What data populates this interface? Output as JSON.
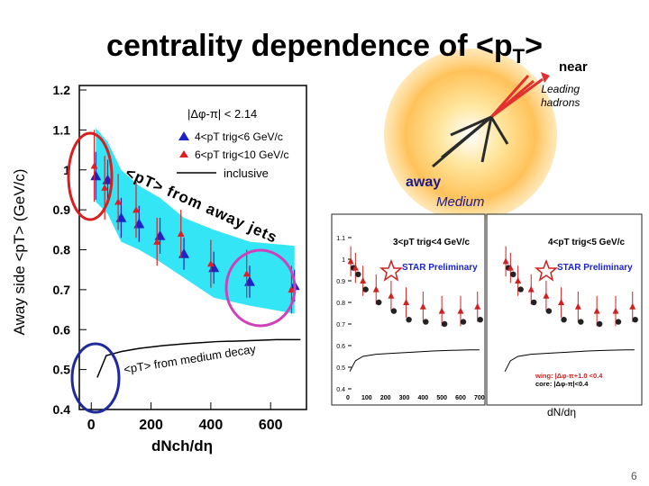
{
  "title": "centrality dependence of <p",
  "title_sub": "T",
  "title_end": ">",
  "annotations": {
    "near": "near",
    "leading_line1": "Leading",
    "leading_line2": "hadrons",
    "away": "away",
    "medium": "Medium",
    "away_jets": "<pT> from away jets",
    "medium_decay": "<pT> from medium decay",
    "page_number": "6"
  },
  "colors": {
    "band": "#33e5f5",
    "blue": "#1c24c8",
    "red": "#e02020",
    "circle_red": "#d81e1e",
    "circle_blue": "#1f2a9e",
    "circle_magenta": "#d040b8"
  },
  "chart_data": [
    {
      "type": "scatter",
      "title": "",
      "ylabel": "Away side <pT> (GeV/c)",
      "xlabel": "dNch/dη",
      "xlim": [
        -40,
        720
      ],
      "ylim": [
        0.4,
        1.2
      ],
      "x_ticks": [
        "0",
        "200",
        "400",
        "600"
      ],
      "x_tick_values": [
        0,
        200,
        400,
        600
      ],
      "y_ticks": [
        "1.2",
        "1.1",
        "1",
        "0.9",
        "0.8",
        "0.7",
        "0.6",
        "0.5",
        "0.4"
      ],
      "y_tick_values": [
        1.2,
        1.1,
        1.0,
        0.9,
        0.8,
        0.7,
        0.6,
        0.5,
        0.4
      ],
      "legend": {
        "cut": "|Δφ-π| < 2.14",
        "entries": [
          "4<pT trig<6 GeV/c",
          "6<pT trig<10 GeV/c",
          "inclusive"
        ],
        "placement": "top-right"
      },
      "series": [
        {
          "name": "4<pT trig<6 GeV/c",
          "marker": "triangle",
          "color": "#1c24c8",
          "x": [
            15,
            55,
            100,
            160,
            230,
            310,
            410,
            530,
            680
          ],
          "y": [
            0.985,
            0.975,
            0.88,
            0.865,
            0.835,
            0.79,
            0.755,
            0.72,
            0.71
          ],
          "err": [
            0.06,
            0.05,
            0.05,
            0.045,
            0.045,
            0.04,
            0.04,
            0.04,
            0.04
          ]
        },
        {
          "name": "6<pT trig<10 GeV/c",
          "marker": "triangle",
          "color": "#e02020",
          "x": [
            10,
            45,
            90,
            150,
            220,
            300,
            400,
            520,
            670
          ],
          "y": [
            1.01,
            0.955,
            0.92,
            0.9,
            0.82,
            0.84,
            0.765,
            0.74,
            0.7
          ],
          "err": [
            0.09,
            0.08,
            0.07,
            0.07,
            0.06,
            0.06,
            0.06,
            0.06,
            0.06
          ]
        }
      ],
      "band": {
        "name": "systematic band",
        "x": [
          15,
          55,
          100,
          160,
          230,
          310,
          410,
          530,
          680
        ],
        "upper": [
          1.105,
          1.07,
          1.0,
          0.96,
          0.93,
          0.88,
          0.85,
          0.82,
          0.81
        ],
        "lower": [
          0.92,
          0.89,
          0.82,
          0.8,
          0.77,
          0.73,
          0.68,
          0.66,
          0.64
        ]
      },
      "inclusive_curve": {
        "name": "inclusive",
        "x": [
          20,
          50,
          100,
          160,
          240,
          320,
          420,
          520,
          620,
          700
        ],
        "y": [
          0.48,
          0.535,
          0.545,
          0.553,
          0.56,
          0.565,
          0.57,
          0.572,
          0.575,
          0.575
        ]
      }
    },
    {
      "type": "scatter",
      "title": "3<pT trig<4 GeV/c",
      "xlabel": "",
      "x_ticks": [
        "0",
        "100",
        "200",
        "300",
        "400",
        "500",
        "600",
        "700"
      ],
      "y_ticks": [
        "1.1",
        "1",
        "0.9",
        "0.8",
        "0.7",
        "0.6",
        "0.5",
        "0.4"
      ],
      "xlim": [
        0,
        720
      ],
      "ylim": [
        0.4,
        1.15
      ],
      "label": "STAR Preliminary"
    },
    {
      "type": "scatter",
      "title": "4<pT trig<5 GeV/c",
      "xlabel": "dN/dη",
      "xlim": [
        0,
        720
      ],
      "ylim": [
        0.4,
        1.15
      ],
      "label": "STAR Preliminary",
      "legend": [
        "wing: |Δφ-π+1.0 <0.4",
        "core: |Δφ-π|<0.4"
      ]
    }
  ]
}
